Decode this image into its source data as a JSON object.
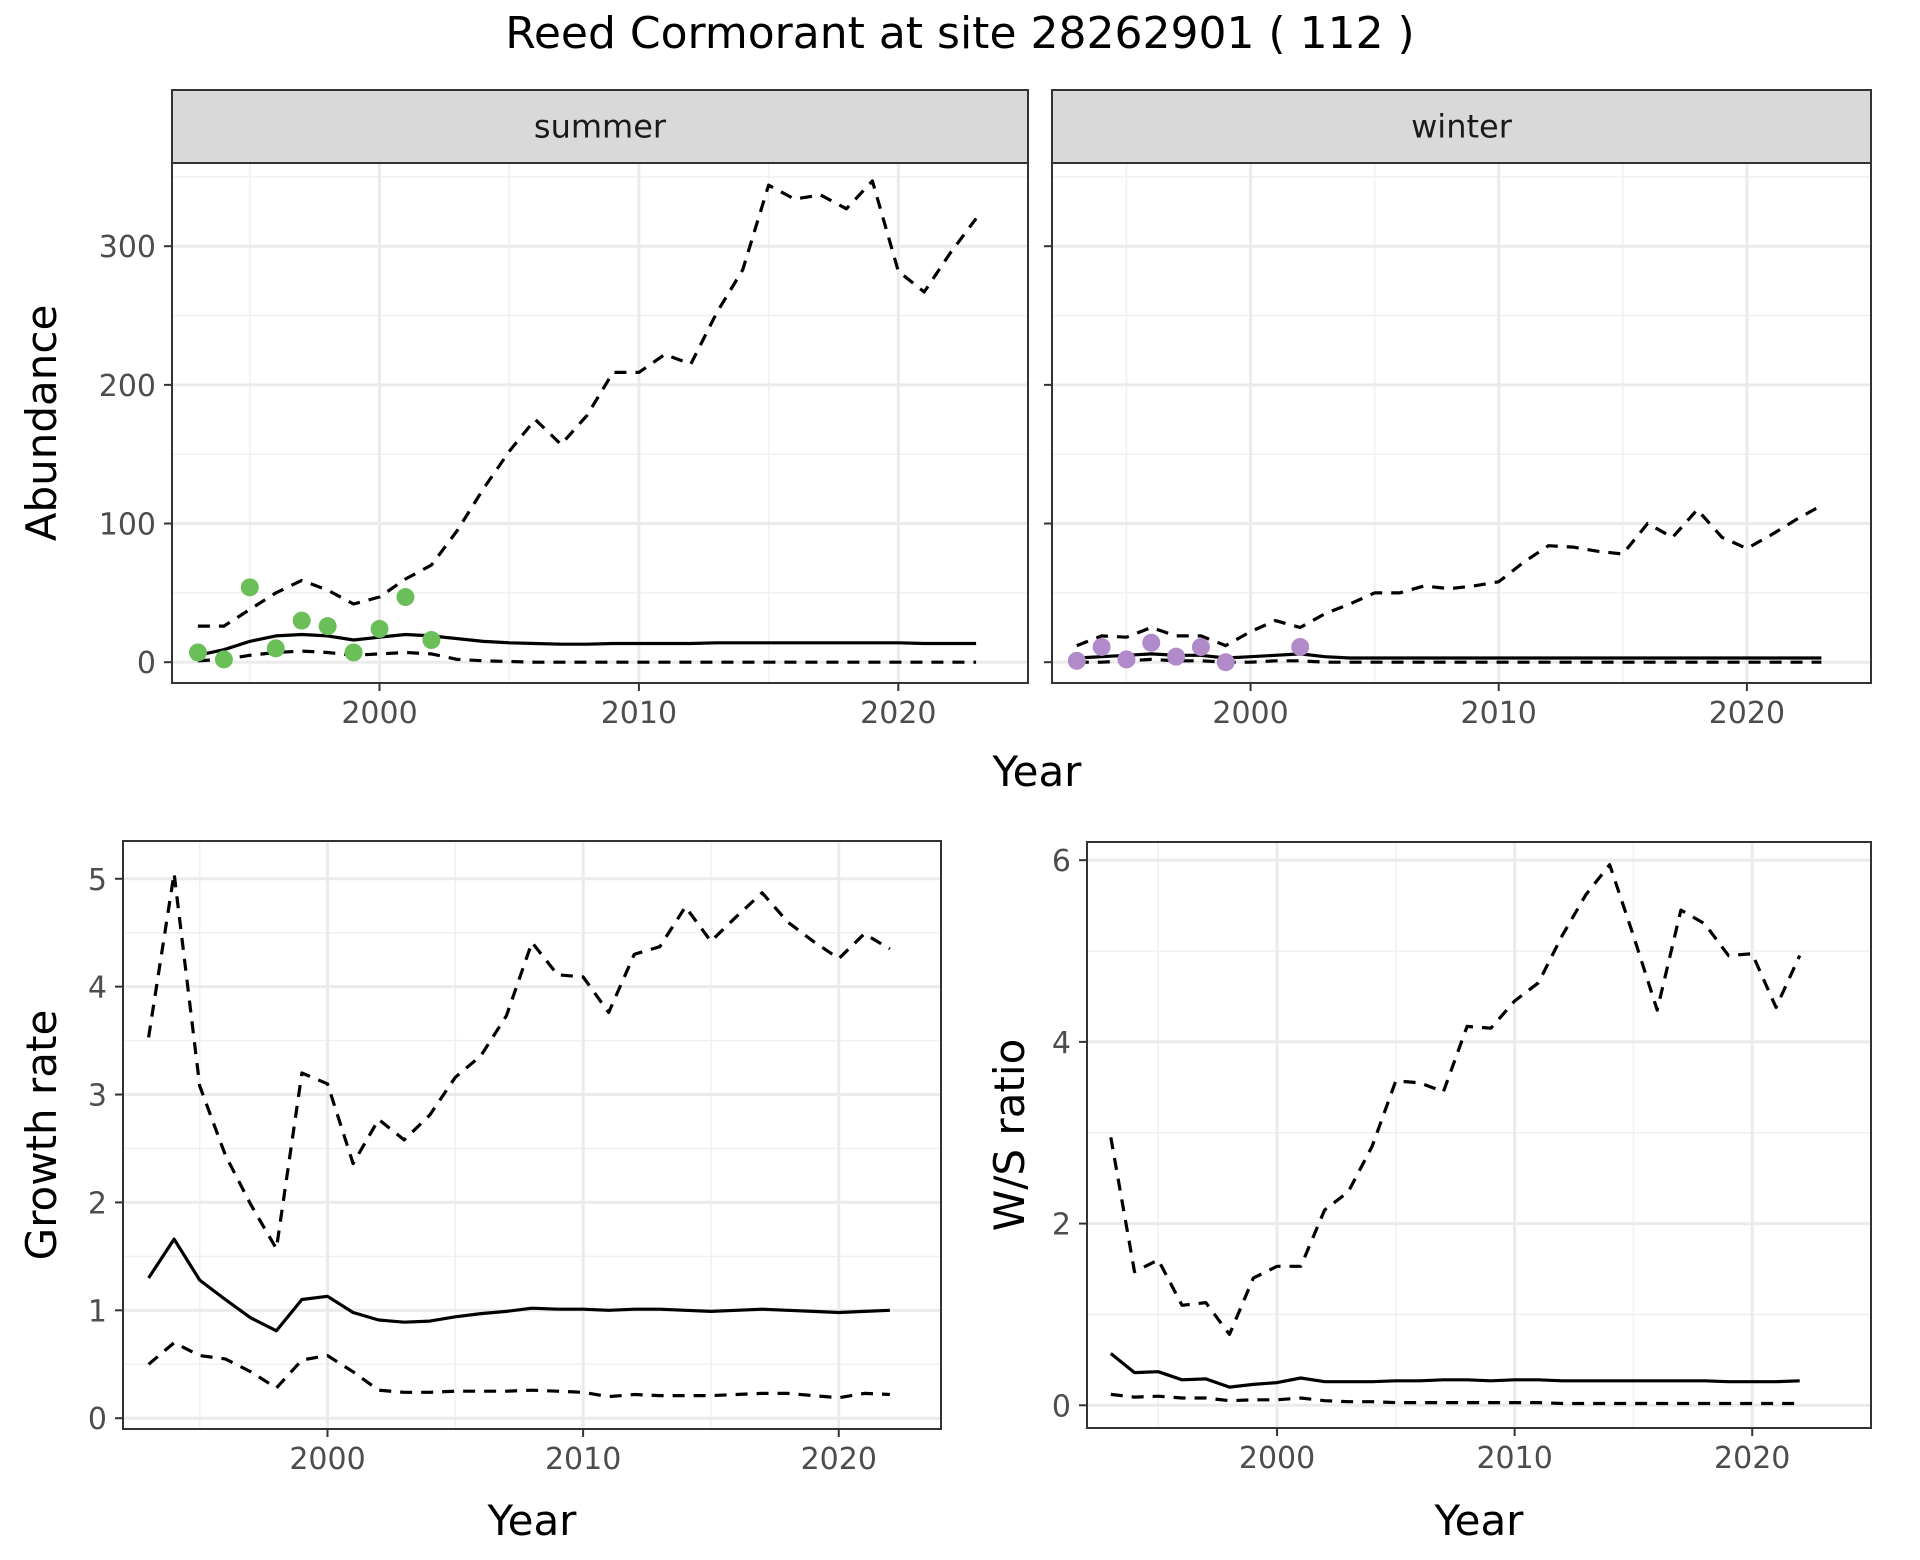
{
  "figure": {
    "title": "Reed Cormorant at site 28262901 ( 112 )"
  },
  "chart_data": [
    {
      "type": "line",
      "panel": "summer",
      "strip": "summer",
      "xlabel": "",
      "ylabel": "Abundance",
      "xlim": [
        1992,
        2025
      ],
      "ylim": [
        -15,
        360
      ],
      "xticks": [
        2000,
        2010,
        2020
      ],
      "yticks": [
        0,
        100,
        200,
        300
      ],
      "grid": true,
      "point_color": "#6bbf59",
      "x": [
        1993,
        1994,
        1995,
        1996,
        1997,
        1998,
        1999,
        2000,
        2001,
        2002,
        2003,
        2004,
        2005,
        2006,
        2007,
        2008,
        2009,
        2010,
        2011,
        2012,
        2013,
        2014,
        2015,
        2016,
        2017,
        2018,
        2019,
        2020,
        2021,
        2022,
        2023
      ],
      "series": [
        {
          "style": "solid",
          "values": [
            5,
            9,
            15,
            19,
            20,
            19,
            16,
            18,
            20,
            19,
            17,
            15,
            14,
            13.5,
            13,
            13,
            13.5,
            13.5,
            13.5,
            13.5,
            14,
            14,
            14,
            14,
            14,
            14,
            14,
            14,
            13.5,
            13.5,
            13.5
          ]
        },
        {
          "style": "dashed",
          "values": [
            26,
            26,
            38,
            50,
            59,
            52,
            42,
            47,
            60,
            70,
            95,
            125,
            152,
            175,
            157,
            178,
            209,
            209,
            222,
            215,
            252,
            283,
            344,
            334,
            337,
            327,
            347,
            282,
            267,
            295,
            320
          ]
        },
        {
          "style": "dashed",
          "values": [
            1,
            2,
            5,
            7,
            8,
            7,
            5,
            6,
            7,
            6,
            2,
            1,
            0.5,
            0,
            0,
            0,
            0,
            0,
            0,
            0,
            0,
            0,
            0,
            0,
            0,
            0,
            0,
            0,
            0,
            0,
            0
          ]
        }
      ],
      "points": {
        "x": [
          1993,
          1994,
          1995,
          1996,
          1997,
          1998,
          1999,
          2000,
          2001,
          2002
        ],
        "y": [
          7,
          2,
          54,
          10,
          30,
          26,
          7,
          24,
          47,
          16
        ]
      }
    },
    {
      "type": "line",
      "panel": "winter",
      "strip": "winter",
      "xlabel": "",
      "ylabel": "",
      "xlim": [
        1992,
        2025
      ],
      "ylim": [
        -15,
        360
      ],
      "xticks": [
        2000,
        2010,
        2020
      ],
      "yticks": [
        0,
        100,
        200,
        300
      ],
      "grid": true,
      "point_color": "#b18ac9",
      "x": [
        1993,
        1994,
        1995,
        1996,
        1997,
        1998,
        1999,
        2000,
        2001,
        2002,
        2003,
        2004,
        2005,
        2006,
        2007,
        2008,
        2009,
        2010,
        2011,
        2012,
        2013,
        2014,
        2015,
        2016,
        2017,
        2018,
        2019,
        2020,
        2021,
        2022,
        2023
      ],
      "series": [
        {
          "style": "solid",
          "values": [
            3,
            4,
            5,
            6,
            5,
            5,
            3,
            4,
            5,
            6,
            4,
            3,
            3,
            3,
            3,
            3,
            3,
            3,
            3,
            3,
            3,
            3,
            3,
            3,
            3,
            3,
            3,
            3,
            3,
            3,
            3
          ]
        },
        {
          "style": "dashed",
          "values": [
            12,
            19,
            18,
            25,
            19,
            19,
            12,
            22,
            30,
            25,
            35,
            42,
            50,
            50,
            55,
            53,
            55,
            58,
            72,
            84,
            83,
            80,
            78,
            100,
            90,
            110,
            90,
            82,
            92,
            103,
            113
          ]
        },
        {
          "style": "dashed",
          "values": [
            0,
            0,
            1,
            2,
            1,
            1,
            0,
            0,
            1,
            1,
            0,
            0,
            0,
            0,
            0,
            0,
            0,
            0,
            0,
            0,
            0,
            0,
            0,
            0,
            0,
            0,
            0,
            0,
            0,
            0,
            0
          ]
        }
      ],
      "points": {
        "x": [
          1993,
          1994,
          1995,
          1996,
          1997,
          1998,
          1999,
          2002
        ],
        "y": [
          1,
          11,
          2,
          14,
          4,
          11,
          0,
          11
        ]
      }
    },
    {
      "type": "line",
      "panel": "growth-rate",
      "xlabel": "Year",
      "ylabel": "Growth rate",
      "xlim": [
        1992,
        2024
      ],
      "ylim": [
        -0.1,
        5.35
      ],
      "xticks": [
        2000,
        2010,
        2020
      ],
      "yticks": [
        0,
        1,
        2,
        3,
        4,
        5
      ],
      "grid": true,
      "x": [
        1993,
        1994,
        1995,
        1996,
        1997,
        1998,
        1999,
        2000,
        2001,
        2002,
        2003,
        2004,
        2005,
        2006,
        2007,
        2008,
        2009,
        2010,
        2011,
        2012,
        2013,
        2014,
        2015,
        2016,
        2017,
        2018,
        2019,
        2020,
        2021,
        2022
      ],
      "series": [
        {
          "style": "solid",
          "values": [
            1.3,
            1.66,
            1.28,
            1.1,
            0.93,
            0.81,
            1.1,
            1.13,
            0.98,
            0.91,
            0.89,
            0.9,
            0.94,
            0.97,
            0.99,
            1.02,
            1.01,
            1.01,
            1.0,
            1.01,
            1.01,
            1.0,
            0.99,
            1.0,
            1.01,
            1.0,
            0.99,
            0.98,
            0.99,
            1.0
          ]
        },
        {
          "style": "dashed",
          "values": [
            3.53,
            5.05,
            3.08,
            2.44,
            1.98,
            1.57,
            3.2,
            3.1,
            2.36,
            2.77,
            2.58,
            2.81,
            3.16,
            3.36,
            3.73,
            4.41,
            4.11,
            4.09,
            3.76,
            4.3,
            4.37,
            4.74,
            4.42,
            4.65,
            4.87,
            4.6,
            4.42,
            4.26,
            4.49,
            4.35
          ]
        },
        {
          "style": "dashed",
          "values": [
            0.5,
            0.7,
            0.58,
            0.55,
            0.43,
            0.28,
            0.54,
            0.58,
            0.43,
            0.26,
            0.24,
            0.24,
            0.25,
            0.25,
            0.25,
            0.26,
            0.25,
            0.24,
            0.2,
            0.22,
            0.21,
            0.21,
            0.21,
            0.22,
            0.23,
            0.23,
            0.21,
            0.19,
            0.23,
            0.22
          ]
        }
      ]
    },
    {
      "type": "line",
      "panel": "ws-ratio",
      "xlabel": "Year",
      "ylabel": "W/S ratio",
      "xlim": [
        1992,
        2025
      ],
      "ylim": [
        -0.25,
        6.2
      ],
      "xticks": [
        2000,
        2010,
        2020
      ],
      "yticks": [
        0,
        2,
        4,
        6
      ],
      "grid": true,
      "x": [
        1993,
        1994,
        1995,
        1996,
        1997,
        1998,
        1999,
        2000,
        2001,
        2002,
        2003,
        2004,
        2005,
        2006,
        2007,
        2008,
        2009,
        2010,
        2011,
        2012,
        2013,
        2014,
        2015,
        2016,
        2017,
        2018,
        2019,
        2020,
        2021,
        2022
      ],
      "series": [
        {
          "style": "solid",
          "values": [
            0.57,
            0.36,
            0.37,
            0.28,
            0.29,
            0.2,
            0.23,
            0.25,
            0.3,
            0.26,
            0.26,
            0.26,
            0.27,
            0.27,
            0.28,
            0.28,
            0.27,
            0.28,
            0.28,
            0.27,
            0.27,
            0.27,
            0.27,
            0.27,
            0.27,
            0.27,
            0.26,
            0.26,
            0.26,
            0.27
          ]
        },
        {
          "style": "dashed",
          "values": [
            2.95,
            1.47,
            1.6,
            1.1,
            1.13,
            0.78,
            1.4,
            1.53,
            1.53,
            2.15,
            2.35,
            2.85,
            3.57,
            3.55,
            3.45,
            4.17,
            4.15,
            4.45,
            4.65,
            5.17,
            5.62,
            5.95,
            5.17,
            4.35,
            5.45,
            5.3,
            4.95,
            4.97,
            4.38,
            4.95
          ]
        },
        {
          "style": "dashed",
          "values": [
            0.12,
            0.09,
            0.1,
            0.08,
            0.08,
            0.05,
            0.06,
            0.06,
            0.08,
            0.05,
            0.04,
            0.04,
            0.03,
            0.03,
            0.03,
            0.03,
            0.03,
            0.03,
            0.03,
            0.02,
            0.02,
            0.02,
            0.02,
            0.02,
            0.02,
            0.02,
            0.02,
            0.02,
            0.02,
            0.02
          ]
        }
      ]
    }
  ],
  "shared": {
    "top_xlabel": "Year"
  }
}
